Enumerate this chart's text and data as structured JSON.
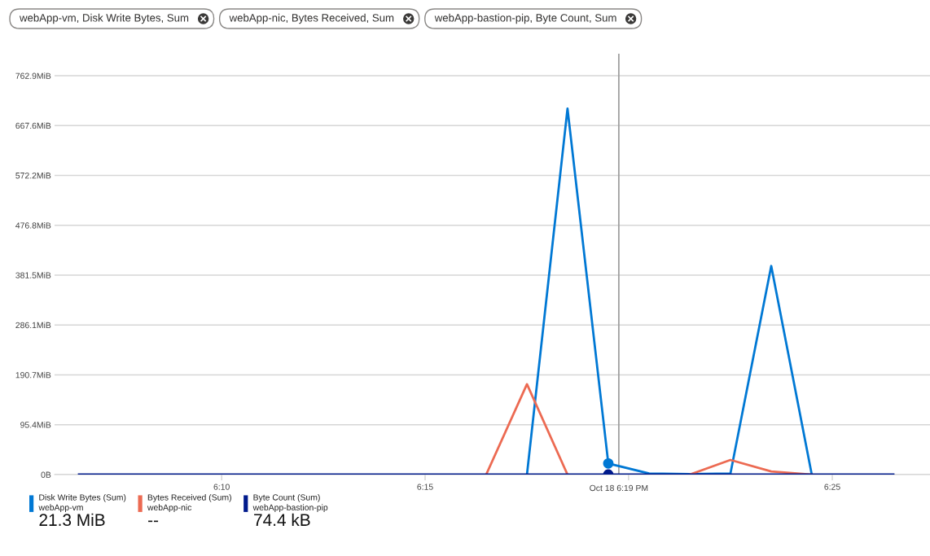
{
  "chart_data": {
    "type": "line",
    "annotations": [
      "webApp-vm, Disk Write Bytes, Sum",
      "webApp-nic, Bytes Received, Sum",
      "webApp-bastion-pip, Byte Count, Sum",
      "21.3 MiB",
      "--",
      "74.4 kB"
    ],
    "x": [
      6.1083,
      6.125,
      6.1417,
      6.1583,
      6.175,
      6.1917,
      6.2083,
      6.225,
      6.2417,
      6.2583,
      6.275,
      6.2917,
      6.3083,
      6.325,
      6.3417,
      6.3583,
      6.375,
      6.3917,
      6.4083,
      6.425,
      6.4417
    ],
    "xlim": [
      6.0983,
      6.4567
    ],
    "xticks": [
      {
        "value": 6.1667,
        "label": "6:10"
      },
      {
        "value": 6.25,
        "label": "6:15"
      },
      {
        "value": 6.3333,
        "label": null
      },
      {
        "value": 6.4167,
        "label": "6:25"
      }
    ],
    "ylim": [
      0,
      805
    ],
    "yticks": [
      {
        "value": 0,
        "label": "0B"
      },
      {
        "value": 95.4,
        "label": "95.4MiB"
      },
      {
        "value": 190.7,
        "label": "190.7MiB"
      },
      {
        "value": 286.1,
        "label": "286.1MiB"
      },
      {
        "value": 381.5,
        "label": "381.5MiB"
      },
      {
        "value": 476.8,
        "label": "476.8MiB"
      },
      {
        "value": 572.2,
        "label": "572.2MiB"
      },
      {
        "value": 667.6,
        "label": "667.6MiB"
      },
      {
        "value": 762.9,
        "label": "762.9MiB"
      }
    ],
    "grid": "y",
    "legend": "bottom left",
    "ref_lines": [
      {
        "axis": "x",
        "value": 6.3293,
        "label": "Oct 18 6:19 PM",
        "color": "#a0a0a0"
      }
    ],
    "series": [
      {
        "name": "Disk Write Bytes (Sum)\nwebApp-vm",
        "color": "#0078d4",
        "values": [
          null,
          null,
          null,
          null,
          null,
          null,
          null,
          null,
          null,
          null,
          null,
          0,
          700,
          21.3,
          2,
          1,
          2,
          399,
          0,
          null,
          null
        ]
      },
      {
        "name": "Bytes Received (Sum)\nwebApp-nic",
        "color": "#ec6a52",
        "values": [
          null,
          null,
          null,
          null,
          null,
          null,
          null,
          null,
          null,
          null,
          0,
          173,
          0,
          null,
          null,
          0,
          28,
          6,
          0,
          null,
          null
        ]
      },
      {
        "name": "Byte Count (Sum)\nwebApp-bastion-pip",
        "color": "#001a8c",
        "values": [
          0,
          0,
          0,
          0,
          0,
          0,
          0,
          0,
          0,
          0,
          0,
          0,
          0,
          0.071,
          0,
          0,
          0,
          0,
          0,
          0,
          0
        ]
      },
      {
        "type": "scatter",
        "marker": "circle",
        "x": [
          6.325,
          6.325
        ],
        "values": [
          21.3,
          0.071
        ],
        "colors": [
          "#0078d4",
          "#001a8c"
        ]
      }
    ]
  }
}
